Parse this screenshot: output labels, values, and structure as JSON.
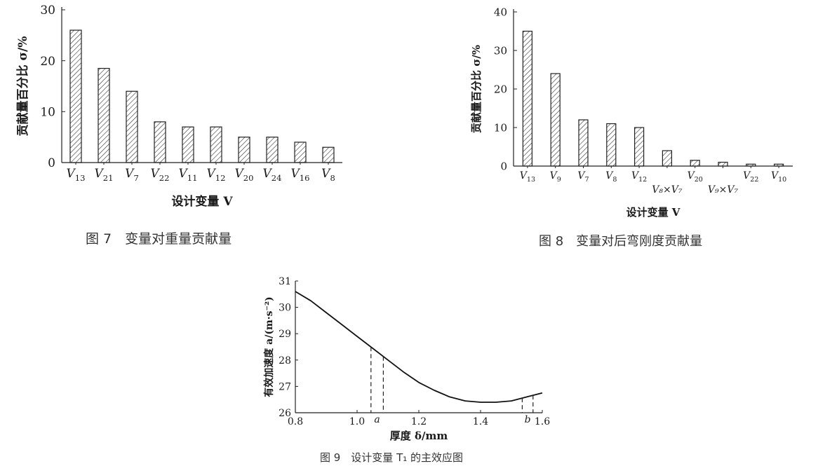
{
  "chart_data": [
    {
      "type": "bar",
      "caption": "图 7　变量对重量贡献量",
      "ylabel": "贡献量百分比 σ/%",
      "xlabel": "设计变量 V",
      "ylim": [
        0,
        30
      ],
      "yticks": [
        0,
        10,
        20,
        30
      ],
      "categories": [
        {
          "sym": "V",
          "sub": "13"
        },
        {
          "sym": "V",
          "sub": "21"
        },
        {
          "sym": "V",
          "sub": "7"
        },
        {
          "sym": "V",
          "sub": "22"
        },
        {
          "sym": "V",
          "sub": "11"
        },
        {
          "sym": "V",
          "sub": "12"
        },
        {
          "sym": "V",
          "sub": "20"
        },
        {
          "sym": "V",
          "sub": "24"
        },
        {
          "sym": "V",
          "sub": "16"
        },
        {
          "sym": "V",
          "sub": "8"
        }
      ],
      "values": [
        26,
        18.5,
        14,
        8,
        7,
        7,
        5,
        5,
        4,
        3
      ],
      "grid": false,
      "bar_fill": "diagonal-hatch"
    },
    {
      "type": "bar",
      "caption": "图 8　变量对后弯刚度贡献量",
      "ylabel": "贡献量百分比 σ/%",
      "xlabel": "设计变量 V",
      "ylim": [
        0,
        40
      ],
      "yticks": [
        0,
        10,
        20,
        30,
        40
      ],
      "categories": [
        {
          "sym": "V",
          "sub": "13",
          "row": 0
        },
        {
          "sym": "V",
          "sub": "9",
          "row": 0
        },
        {
          "sym": "V",
          "sub": "7",
          "row": 0
        },
        {
          "sym": "V",
          "sub": "8",
          "row": 0
        },
        {
          "sym": "V",
          "sub": "12",
          "row": 0
        },
        {
          "sym": "V₈×V₇",
          "sub": "",
          "row": 1
        },
        {
          "sym": "V",
          "sub": "20",
          "row": 0
        },
        {
          "sym": "V₉×V₇",
          "sub": "",
          "row": 1
        },
        {
          "sym": "V",
          "sub": "22",
          "row": 0
        },
        {
          "sym": "V",
          "sub": "10",
          "row": 0
        }
      ],
      "values": [
        35,
        24,
        12,
        11,
        10,
        4,
        1.5,
        1,
        0.5,
        0.5
      ],
      "grid": false,
      "bar_fill": "diagonal-hatch"
    },
    {
      "type": "line",
      "caption": "图 9　设计变量 T₁ 的主效应图",
      "ylabel": "有效加速度 a/(m·s⁻²)",
      "xlabel": "厚度 δ/mm",
      "xlim": [
        0.8,
        1.6
      ],
      "ylim": [
        26,
        31
      ],
      "xticks": [
        "0.8",
        "1.0",
        "1.2",
        "1.4",
        "1.6"
      ],
      "yticks": [
        "26",
        "27",
        "28",
        "29",
        "30",
        "31"
      ],
      "x": [
        0.8,
        0.85,
        0.9,
        0.95,
        1.0,
        1.05,
        1.1,
        1.15,
        1.2,
        1.25,
        1.3,
        1.35,
        1.4,
        1.45,
        1.5,
        1.55,
        1.6
      ],
      "y": [
        30.6,
        30.25,
        29.8,
        29.35,
        28.9,
        28.45,
        28.0,
        27.55,
        27.15,
        26.85,
        26.6,
        26.45,
        26.4,
        26.4,
        26.45,
        26.6,
        26.75
      ],
      "markers": [
        {
          "label": "a",
          "x1": 1.045,
          "x2": 1.085
        },
        {
          "label": "b",
          "x1": 1.535,
          "x2": 1.57
        }
      ],
      "grid": false
    }
  ]
}
